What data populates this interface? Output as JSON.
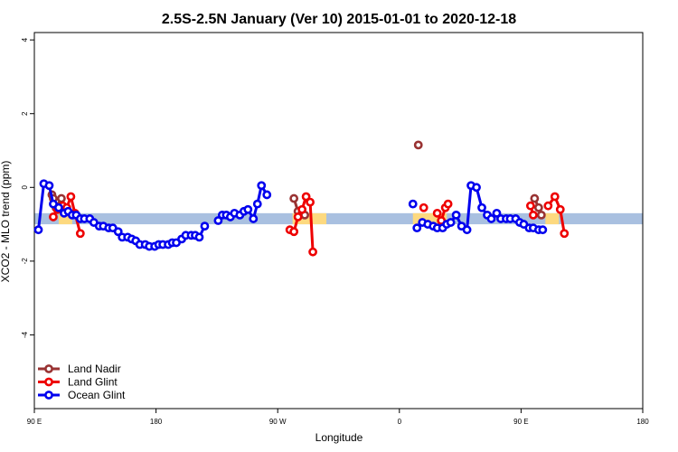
{
  "chart_data": {
    "type": "line",
    "title": "2.5S-2.5N January (Ver 10)   2015-01-01 to 2020-12-18",
    "xlabel": "Longitude",
    "ylabel": "XCO2 - MLO trend (ppm)",
    "x_tick_labels": [
      "90 E",
      "180",
      "90 W",
      "0",
      "90 E",
      "180"
    ],
    "x_tick_values": [
      90,
      180,
      270,
      360,
      450,
      540
    ],
    "y_tick_labels": [
      "-4",
      "-2",
      "0",
      "2",
      "4"
    ],
    "y_tick_values": [
      -4,
      -2,
      0,
      2,
      4
    ],
    "xlim": [
      90,
      540
    ],
    "ylim": [
      -6,
      4.2
    ],
    "reference_band": {
      "y_min": -1.0,
      "y_max": -0.7,
      "color": "#a9c0e0"
    },
    "land_bands": [
      {
        "x_start": 108,
        "x_end": 118,
        "color": "#fdd97f"
      },
      {
        "x_start": 281,
        "x_end": 306,
        "color": "#fdd97f"
      },
      {
        "x_start": 370,
        "x_end": 395,
        "color": "#fdd97f"
      },
      {
        "x_start": 468,
        "x_end": 478,
        "color": "#fdd97f"
      }
    ],
    "legend_position": "bottom-left",
    "series": [
      {
        "name": "Land Nadir",
        "color": "#993333",
        "segments": [
          [
            [
              103,
              -0.2
            ],
            [
              104,
              -0.3
            ],
            [
              106,
              -0.55
            ],
            [
              110,
              -0.3
            ]
          ],
          [
            [
              282,
              -0.3
            ],
            [
              285,
              -0.65
            ],
            [
              288,
              -0.7
            ],
            [
              290,
              -0.75
            ]
          ],
          [
            [
              374,
              1.15
            ]
          ],
          [
            [
              460,
              -0.3
            ],
            [
              463,
              -0.55
            ],
            [
              465,
              -0.75
            ]
          ]
        ]
      },
      {
        "name": "Land Glint",
        "color": "#ee0000",
        "segments": [
          [
            [
              104,
              -0.8
            ],
            [
              107,
              -0.6
            ],
            [
              111,
              -0.5
            ],
            [
              114,
              -0.55
            ],
            [
              117,
              -0.25
            ],
            [
              120,
              -0.7
            ],
            [
              124,
              -1.25
            ]
          ],
          [
            [
              279,
              -1.15
            ],
            [
              282,
              -1.2
            ],
            [
              285,
              -0.8
            ],
            [
              288,
              -0.6
            ],
            [
              291,
              -0.25
            ],
            [
              294,
              -0.4
            ],
            [
              296,
              -1.75
            ]
          ],
          [
            [
              378,
              -0.55
            ]
          ],
          [
            [
              388,
              -0.7
            ],
            [
              391,
              -0.9
            ],
            [
              394,
              -0.55
            ],
            [
              396,
              -0.45
            ]
          ],
          [
            [
              457,
              -0.5
            ],
            [
              459,
              -0.75
            ]
          ],
          [
            [
              470,
              -0.5
            ],
            [
              475,
              -0.25
            ],
            [
              479,
              -0.6
            ],
            [
              482,
              -1.25
            ]
          ]
        ]
      },
      {
        "name": "Ocean Glint",
        "color": "#0000ee",
        "segments": [
          [
            [
              93,
              -1.15
            ],
            [
              97,
              0.1
            ],
            [
              101,
              0.05
            ],
            [
              104,
              -0.45
            ],
            [
              108,
              -0.55
            ],
            [
              112,
              -0.7
            ],
            [
              115,
              -0.65
            ],
            [
              118,
              -0.75
            ],
            [
              121,
              -0.75
            ],
            [
              124,
              -0.85
            ],
            [
              127,
              -0.85
            ],
            [
              131,
              -0.85
            ],
            [
              134,
              -0.95
            ],
            [
              138,
              -1.05
            ],
            [
              141,
              -1.05
            ],
            [
              145,
              -1.1
            ],
            [
              148,
              -1.1
            ],
            [
              152,
              -1.2
            ],
            [
              155,
              -1.35
            ],
            [
              159,
              -1.35
            ],
            [
              162,
              -1.4
            ],
            [
              165,
              -1.45
            ],
            [
              168,
              -1.55
            ],
            [
              172,
              -1.55
            ],
            [
              175,
              -1.6
            ],
            [
              179,
              -1.6
            ],
            [
              182,
              -1.55
            ],
            [
              185,
              -1.55
            ],
            [
              189,
              -1.55
            ],
            [
              192,
              -1.5
            ],
            [
              195,
              -1.5
            ],
            [
              199,
              -1.4
            ],
            [
              202,
              -1.3
            ],
            [
              206,
              -1.3
            ],
            [
              209,
              -1.3
            ],
            [
              212,
              -1.35
            ],
            [
              216,
              -1.05
            ]
          ],
          [
            [
              226,
              -0.9
            ],
            [
              229,
              -0.75
            ],
            [
              232,
              -0.75
            ],
            [
              235,
              -0.8
            ],
            [
              238,
              -0.7
            ],
            [
              242,
              -0.75
            ],
            [
              245,
              -0.65
            ],
            [
              248,
              -0.6
            ],
            [
              252,
              -0.85
            ],
            [
              255,
              -0.45
            ],
            [
              258,
              0.05
            ],
            [
              262,
              -0.2
            ]
          ],
          [
            [
              370,
              -0.45
            ]
          ],
          [
            [
              373,
              -1.1
            ],
            [
              377,
              -0.95
            ],
            [
              381,
              -1.0
            ],
            [
              385,
              -1.05
            ],
            [
              388,
              -1.1
            ],
            [
              392,
              -1.1
            ],
            [
              395,
              -1.0
            ],
            [
              398,
              -0.95
            ],
            [
              402,
              -0.75
            ],
            [
              406,
              -1.05
            ],
            [
              410,
              -1.15
            ],
            [
              413,
              0.05
            ],
            [
              417,
              0.0
            ],
            [
              421,
              -0.55
            ],
            [
              425,
              -0.75
            ],
            [
              428,
              -0.85
            ],
            [
              432,
              -0.7
            ],
            [
              435,
              -0.85
            ],
            [
              439,
              -0.85
            ],
            [
              442,
              -0.85
            ],
            [
              446,
              -0.85
            ],
            [
              449,
              -0.95
            ],
            [
              452,
              -1.0
            ],
            [
              456,
              -1.1
            ],
            [
              459,
              -1.1
            ],
            [
              463,
              -1.15
            ],
            [
              466,
              -1.15
            ]
          ]
        ]
      }
    ]
  }
}
